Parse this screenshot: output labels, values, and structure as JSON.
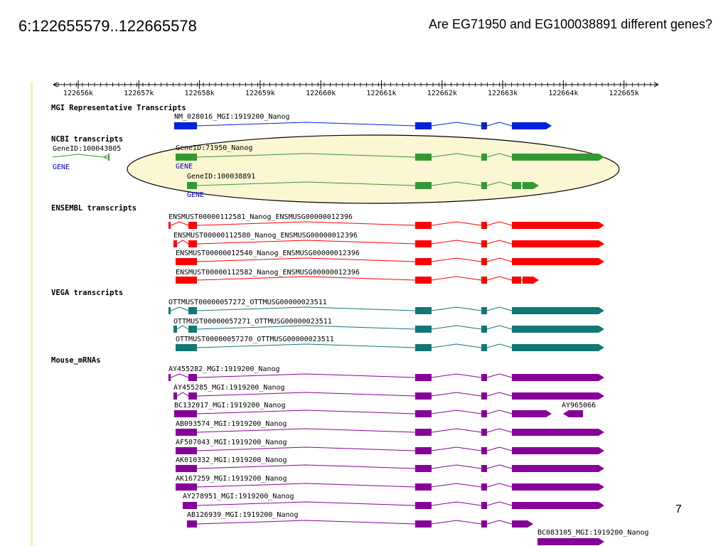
{
  "slide": {
    "title": "6:122655579..122665578",
    "question": "Are EG71950 and EG100038891 different genes?",
    "page_number": "7"
  },
  "ruler": {
    "ticks": [
      "122656k",
      "122657k",
      "122658k",
      "122659k",
      "122660k",
      "122661k",
      "122662k",
      "122663k",
      "122664k",
      "122665k"
    ]
  },
  "colors": {
    "mgi": "#0022dd",
    "ncbi": "#339933",
    "ensembl": "#ff0000",
    "vega": "#117777",
    "mrna": "#880099",
    "gene_link": "#0000cc",
    "highlight_fill": "#fbf7d2"
  },
  "tracks": [
    {
      "title": "MGI Representative Transcripts",
      "color_key": "mgi",
      "features": [
        {
          "label": "NM_028016_MGI:1919200_Nanog",
          "type": "A"
        }
      ]
    },
    {
      "title": "NCBI transcripts",
      "color_key": "ncbi",
      "features": [
        {
          "label": "GeneID:100043805",
          "type": "small",
          "sublabel": "GENE"
        },
        {
          "label": "GeneID:71950_Nanog",
          "type": "B",
          "sublabel": "GENE"
        },
        {
          "label": "GeneID:100038891",
          "type": "D",
          "sublabel": "GENE"
        }
      ]
    },
    {
      "title": "ENSEMBL transcripts",
      "color_key": "ensembl",
      "features": [
        {
          "label": "ENSMUST00000112581_Nanog_ENSMUSG00000012396",
          "type": "C"
        },
        {
          "label": "ENSMUST00000112580_Nanog_ENSMUSG00000012396",
          "type": "C2"
        },
        {
          "label": "ENSMUST00000012540_Nanog_ENSMUSG00000012396",
          "type": "B"
        },
        {
          "label": "ENSMUST00000112582_Nanog_ENSMUSG00000012396",
          "type": "D2"
        }
      ]
    },
    {
      "title": "VEGA transcripts",
      "color_key": "vega",
      "features": [
        {
          "label": "OTTMUST00000057272_OTTMUSG00000023511",
          "type": "C"
        },
        {
          "label": "OTTMUST00000057271_OTTMUSG00000023511",
          "type": "C2"
        },
        {
          "label": "OTTMUST00000057270_OTTMUSG00000023511",
          "type": "B"
        }
      ]
    },
    {
      "title": "Mouse_mRNAs",
      "color_key": "mrna",
      "features": [
        {
          "label": "AY455282_MGI:1919200_Nanog",
          "type": "C"
        },
        {
          "label": "AY455285_MGI:1919200_Nanog",
          "type": "C2"
        },
        {
          "label": "BC132017_MGI:1919200_Nanog",
          "type": "E",
          "extra_label": "AY965066"
        },
        {
          "label": "AB093574_MGI:1919200_Nanog",
          "type": "B"
        },
        {
          "label": "AF507043_MGI:1919200_Nanog",
          "type": "B"
        },
        {
          "label": "AK010332_MGI:1919200_Nanog",
          "type": "B"
        },
        {
          "label": "AK167259_MGI:1919200_Nanog",
          "type": "B"
        },
        {
          "label": "AY278951_MGI:1919200_Nanog",
          "type": "F"
        },
        {
          "label": "AB126939_MGI:1919200_Nanog",
          "type": "G"
        },
        {
          "label": "BC083105_MGI:1919200_Nanog",
          "type": "H"
        }
      ]
    }
  ]
}
